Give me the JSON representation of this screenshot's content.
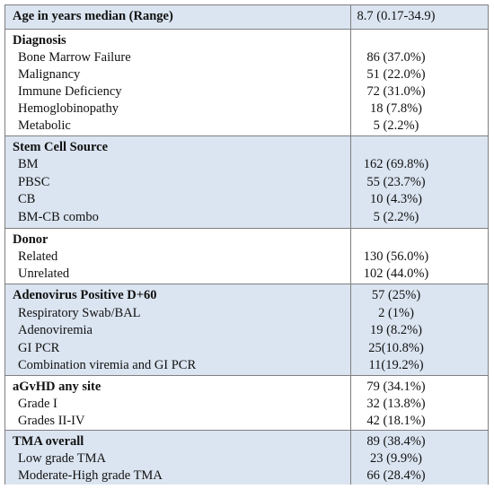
{
  "sections": [
    {
      "shaded": true,
      "rows": [
        {
          "label": "Age in years median (Range)",
          "value": "8.7 (0.17-34.9)",
          "head": true
        }
      ]
    },
    {
      "shaded": false,
      "rows": [
        {
          "label": "Diagnosis",
          "value": "",
          "head": true
        },
        {
          "label": "Bone Marrow Failure",
          "value": "86 (37.0%)"
        },
        {
          "label": "Malignancy",
          "value": "51 (22.0%)"
        },
        {
          "label": "Immune Deficiency",
          "value": "72 (31.0%)"
        },
        {
          "label": "Hemoglobinopathy",
          "value": "18 (7.8%)"
        },
        {
          "label": "Metabolic",
          "value": "5 (2.2%)"
        }
      ]
    },
    {
      "shaded": true,
      "rows": [
        {
          "label": "Stem Cell Source",
          "value": "",
          "head": true
        },
        {
          "label": "BM",
          "value": "162 (69.8%)"
        },
        {
          "label": "PBSC",
          "value": "55 (23.7%)"
        },
        {
          "label": "CB",
          "value": "10 (4.3%)"
        },
        {
          "label": "BM-CB combo",
          "value": "5 (2.2%)"
        }
      ]
    },
    {
      "shaded": false,
      "rows": [
        {
          "label": "Donor",
          "value": "",
          "head": true
        },
        {
          "label": "Related",
          "value": "130 (56.0%)"
        },
        {
          "label": "Unrelated",
          "value": "102 (44.0%)"
        }
      ]
    },
    {
      "shaded": true,
      "rows": [
        {
          "label": "Adenovirus Positive D+60",
          "value": "57 (25%)",
          "head": true
        },
        {
          "label": "Respiratory Swab/BAL",
          "value": "2 (1%)"
        },
        {
          "label": "Adenoviremia",
          "value": "19 (8.2%)"
        },
        {
          "label": "GI PCR",
          "value": "25(10.8%)"
        },
        {
          "label": "Combination viremia and GI PCR",
          "value": "11(19.2%)"
        }
      ]
    },
    {
      "shaded": false,
      "rows": [
        {
          "label": "aGvHD any site",
          "value": "79 (34.1%)",
          "head": true
        },
        {
          "label": "Grade I",
          "value": "32 (13.8%)"
        },
        {
          "label": "Grades II-IV",
          "value": "42 (18.1%)"
        }
      ]
    },
    {
      "shaded": true,
      "rows": [
        {
          "label": "TMA overall",
          "value": "89 (38.4%)",
          "head": true
        },
        {
          "label": "Low grade TMA",
          "value": "23 (9.9%)"
        },
        {
          "label": "Moderate-High grade TMA",
          "value": "66 (28.4%)"
        }
      ]
    }
  ]
}
